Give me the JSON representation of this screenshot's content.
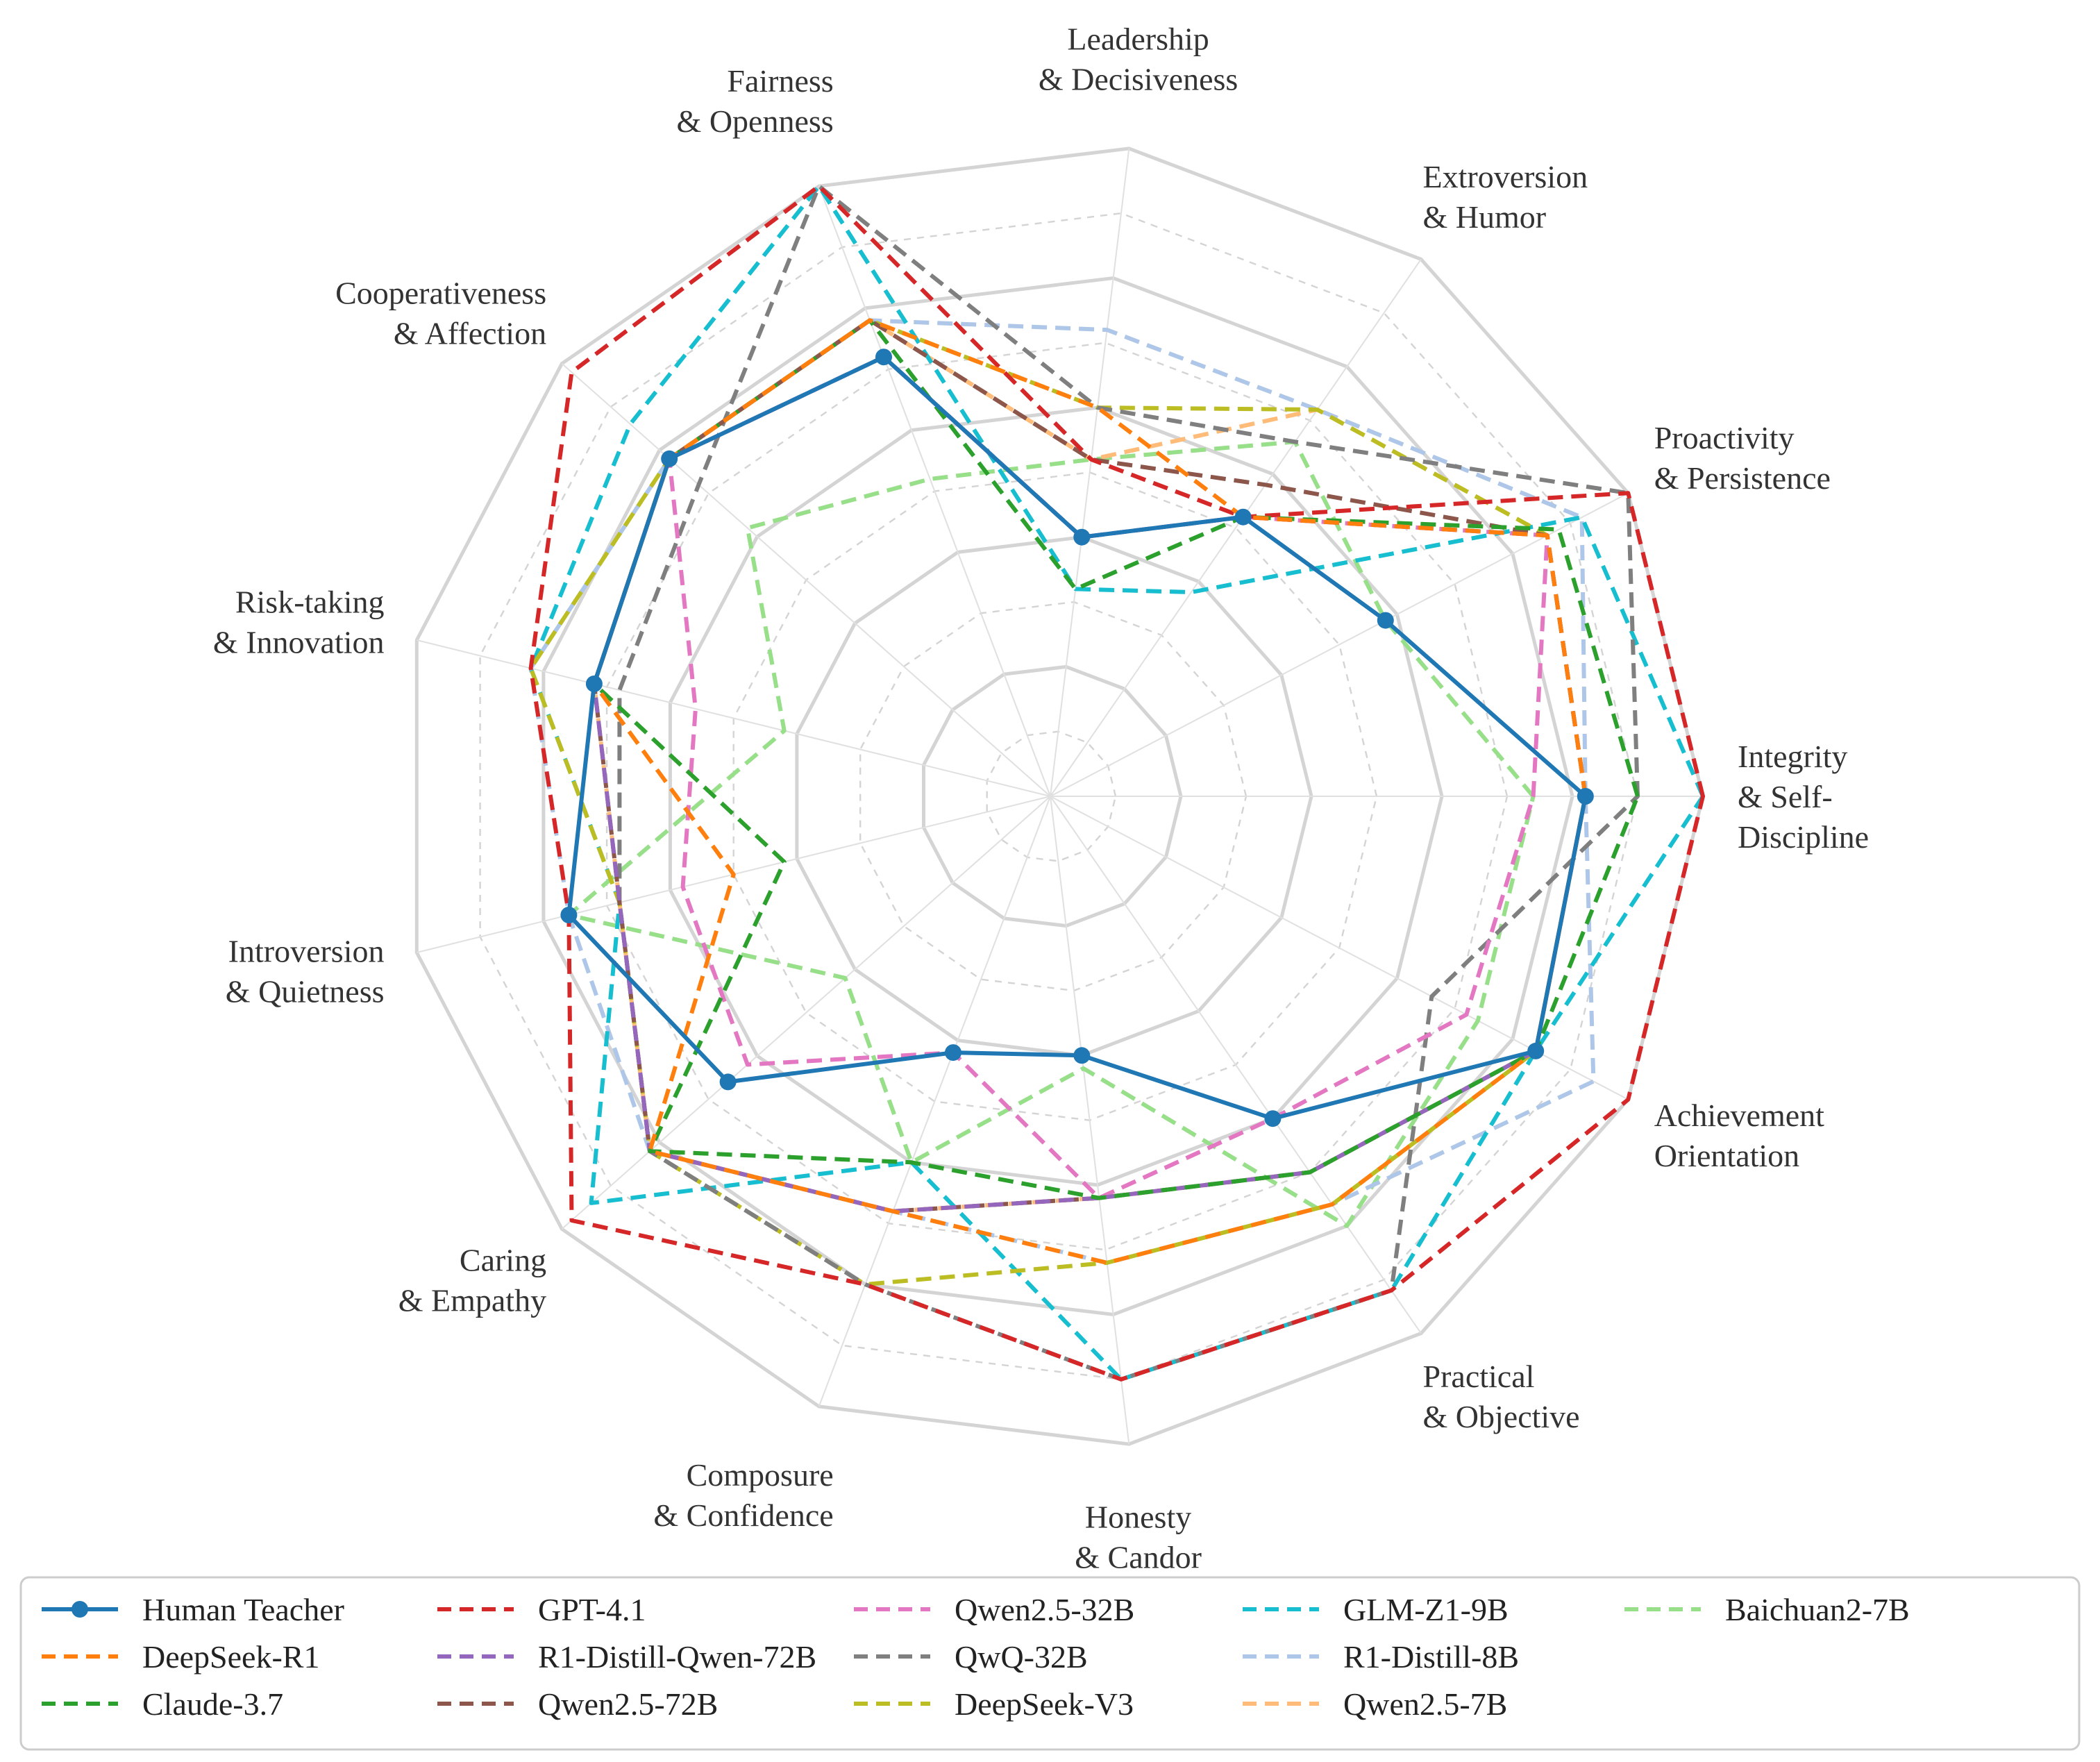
{
  "chart_data": {
    "type": "radar",
    "axes": [
      "Integrity\n& Self-\nDiscipline",
      "Proactivity\n& Persistence",
      "Extroversion\n& Humor",
      "Leadership\n& Decisiveness",
      "Fairness\n& Openness",
      "Cooperativeness\n& Affection",
      "Risk-taking\n& Innovation",
      "Introversion\n& Quietness",
      "Caring\n& Empathy",
      "Composure\n& Confidence",
      "Honesty\n& Candor",
      "Practical\n& Objective",
      "Achievement\nOrientation"
    ],
    "rlim": [
      0,
      5
    ],
    "grid": true,
    "legend_position": "bottom",
    "series": [
      {
        "name": "Human Teacher",
        "color": "#1f77b4",
        "style": "solid-marker",
        "values": [
          4.1,
          2.9,
          2.6,
          2.0,
          3.6,
          3.9,
          3.6,
          3.8,
          3.3,
          2.1,
          2.0,
          3.0,
          4.2
        ]
      },
      {
        "name": "DeepSeek-R1",
        "color": "#ff7f0e",
        "style": "dashed",
        "values": [
          4.1,
          4.3,
          2.6,
          3.0,
          3.9,
          3.9,
          3.6,
          2.5,
          4.1,
          3.4,
          3.6,
          3.8,
          4.2
        ]
      },
      {
        "name": "Claude-3.7",
        "color": "#2ca02c",
        "style": "dashed",
        "values": [
          4.5,
          4.4,
          2.6,
          1.6,
          3.9,
          3.9,
          3.6,
          2.1,
          4.1,
          3.0,
          3.1,
          3.5,
          4.2
        ]
      },
      {
        "name": "GPT-4.1",
        "color": "#d62728",
        "style": "dashed",
        "values": [
          5.0,
          5.0,
          2.6,
          2.6,
          5.0,
          4.9,
          4.1,
          3.8,
          4.9,
          4.0,
          4.5,
          4.6,
          5.0
        ]
      },
      {
        "name": "R1-Distill-Qwen-72B",
        "color": "#9467bd",
        "style": "dashed",
        "values": [
          4.1,
          4.3,
          2.6,
          2.0,
          3.6,
          3.9,
          3.6,
          3.4,
          4.1,
          3.4,
          3.1,
          3.5,
          4.2
        ]
      },
      {
        "name": "Qwen2.5-72B",
        "color": "#8c564b",
        "style": "dashed",
        "values": [
          4.1,
          4.3,
          2.9,
          2.6,
          3.9,
          3.9,
          3.6,
          3.4,
          4.1,
          3.4,
          3.1,
          3.5,
          4.2
        ]
      },
      {
        "name": "Qwen2.5-32B",
        "color": "#e377c2",
        "style": "dashed",
        "values": [
          3.7,
          4.3,
          2.6,
          2.0,
          3.6,
          3.9,
          2.8,
          2.9,
          3.1,
          2.1,
          3.1,
          3.0,
          3.6
        ]
      },
      {
        "name": "QwQ-32B",
        "color": "#7f7f7f",
        "style": "dashed",
        "values": [
          4.5,
          5.0,
          3.3,
          3.0,
          5.0,
          3.6,
          3.4,
          3.4,
          4.1,
          4.0,
          4.5,
          4.6,
          3.3
        ]
      },
      {
        "name": "DeepSeek-V3",
        "color": "#bcbd22",
        "style": "dashed",
        "values": [
          4.1,
          4.3,
          3.6,
          3.0,
          3.9,
          3.9,
          4.1,
          3.4,
          4.1,
          4.0,
          3.6,
          3.8,
          4.2
        ]
      },
      {
        "name": "GLM-Z1-9B",
        "color": "#17becf",
        "style": "dashed",
        "values": [
          5.0,
          4.6,
          1.9,
          1.6,
          5.0,
          4.3,
          4.1,
          3.4,
          4.7,
          3.0,
          4.5,
          4.6,
          4.2
        ]
      },
      {
        "name": "R1-Distill-8B",
        "color": "#aec7e8",
        "style": "dashed",
        "values": [
          4.1,
          4.6,
          3.6,
          3.6,
          3.9,
          3.9,
          4.1,
          3.8,
          4.1,
          3.4,
          3.6,
          3.8,
          4.7
        ]
      },
      {
        "name": "Qwen2.5-7B",
        "color": "#ffbb78",
        "style": "dashed",
        "values": [
          4.1,
          4.3,
          3.6,
          2.6,
          3.9,
          3.9,
          3.6,
          3.4,
          4.1,
          3.4,
          3.1,
          3.5,
          4.2
        ]
      },
      {
        "name": "Baichuan2-7B",
        "color": "#98df8a",
        "style": "dashed",
        "values": [
          3.7,
          2.9,
          3.3,
          2.6,
          2.6,
          3.1,
          2.1,
          3.8,
          2.1,
          3.0,
          2.1,
          4.0,
          3.7
        ]
      }
    ]
  }
}
